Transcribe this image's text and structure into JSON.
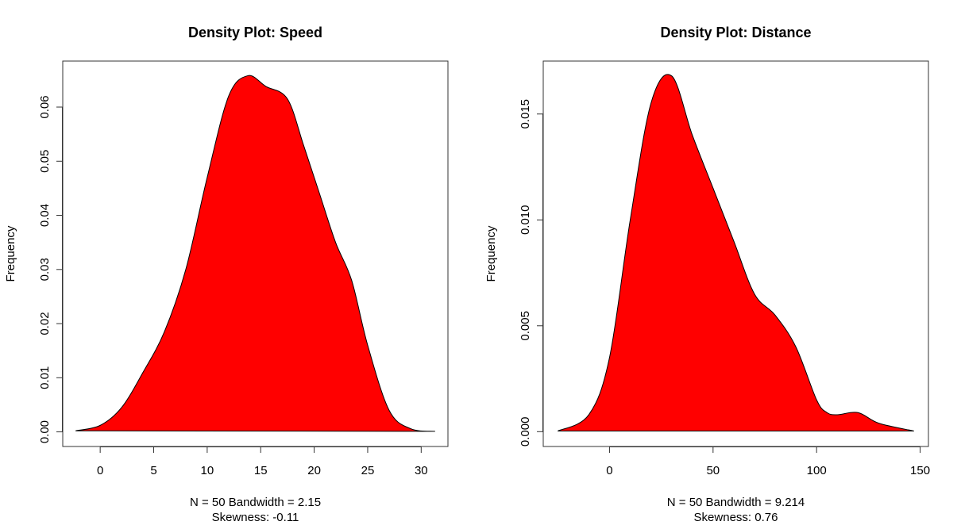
{
  "chart_data": [
    {
      "type": "area",
      "title": "Density Plot: Speed",
      "ylabel": "Frequency",
      "xlabel_lines": [
        "N = 50   Bandwidth = 2.15",
        "Skewness: -0.11"
      ],
      "fill_color": "#ff0000",
      "xlim": [
        -3.5,
        32.5
      ],
      "ylim": [
        -0.0027,
        0.0685
      ],
      "x_ticks": [
        0,
        5,
        10,
        15,
        20,
        25,
        30
      ],
      "x_tick_labels": [
        "0",
        "5",
        "10",
        "15",
        "20",
        "25",
        "30"
      ],
      "y_ticks": [
        0.0,
        0.01,
        0.02,
        0.03,
        0.04,
        0.05,
        0.06
      ],
      "y_tick_labels": [
        "0.00",
        "0.01",
        "0.02",
        "0.03",
        "0.04",
        "0.05",
        "0.06"
      ],
      "grid": false,
      "x": [
        -2.3,
        0,
        2,
        4,
        6,
        8,
        10,
        12,
        13.8,
        15.5,
        17.5,
        19,
        20.5,
        22,
        23.5,
        25,
        27,
        29,
        31.3
      ],
      "y": [
        0.0002,
        0.0012,
        0.0045,
        0.011,
        0.0185,
        0.03,
        0.047,
        0.062,
        0.0658,
        0.0638,
        0.0615,
        0.053,
        0.044,
        0.035,
        0.028,
        0.016,
        0.004,
        0.0006,
        0.0001
      ]
    },
    {
      "type": "area",
      "title": "Density Plot: Distance",
      "ylabel": "Frequency",
      "xlabel_lines": [
        "N = 50   Bandwidth = 9.214",
        "Skewness: 0.76"
      ],
      "fill_color": "#ff0000",
      "xlim": [
        -32,
        154
      ],
      "ylim": [
        -0.0007,
        0.0175
      ],
      "x_ticks": [
        0,
        50,
        100,
        150
      ],
      "x_tick_labels": [
        "0",
        "50",
        "100",
        "150"
      ],
      "y_ticks": [
        0.0,
        0.005,
        0.01,
        0.015
      ],
      "y_tick_labels": [
        "0.000",
        "0.005",
        "0.010",
        "0.015"
      ],
      "grid": false,
      "x": [
        -25,
        -10,
        0,
        10,
        20,
        30,
        40,
        50,
        60,
        70,
        80,
        90,
        100,
        105,
        110,
        120,
        130,
        147
      ],
      "y": [
        3e-05,
        0.0008,
        0.0035,
        0.01,
        0.0155,
        0.0168,
        0.014,
        0.0115,
        0.009,
        0.0065,
        0.0055,
        0.004,
        0.0015,
        0.0009,
        0.0008,
        0.0009,
        0.0004,
        3e-05
      ]
    }
  ]
}
